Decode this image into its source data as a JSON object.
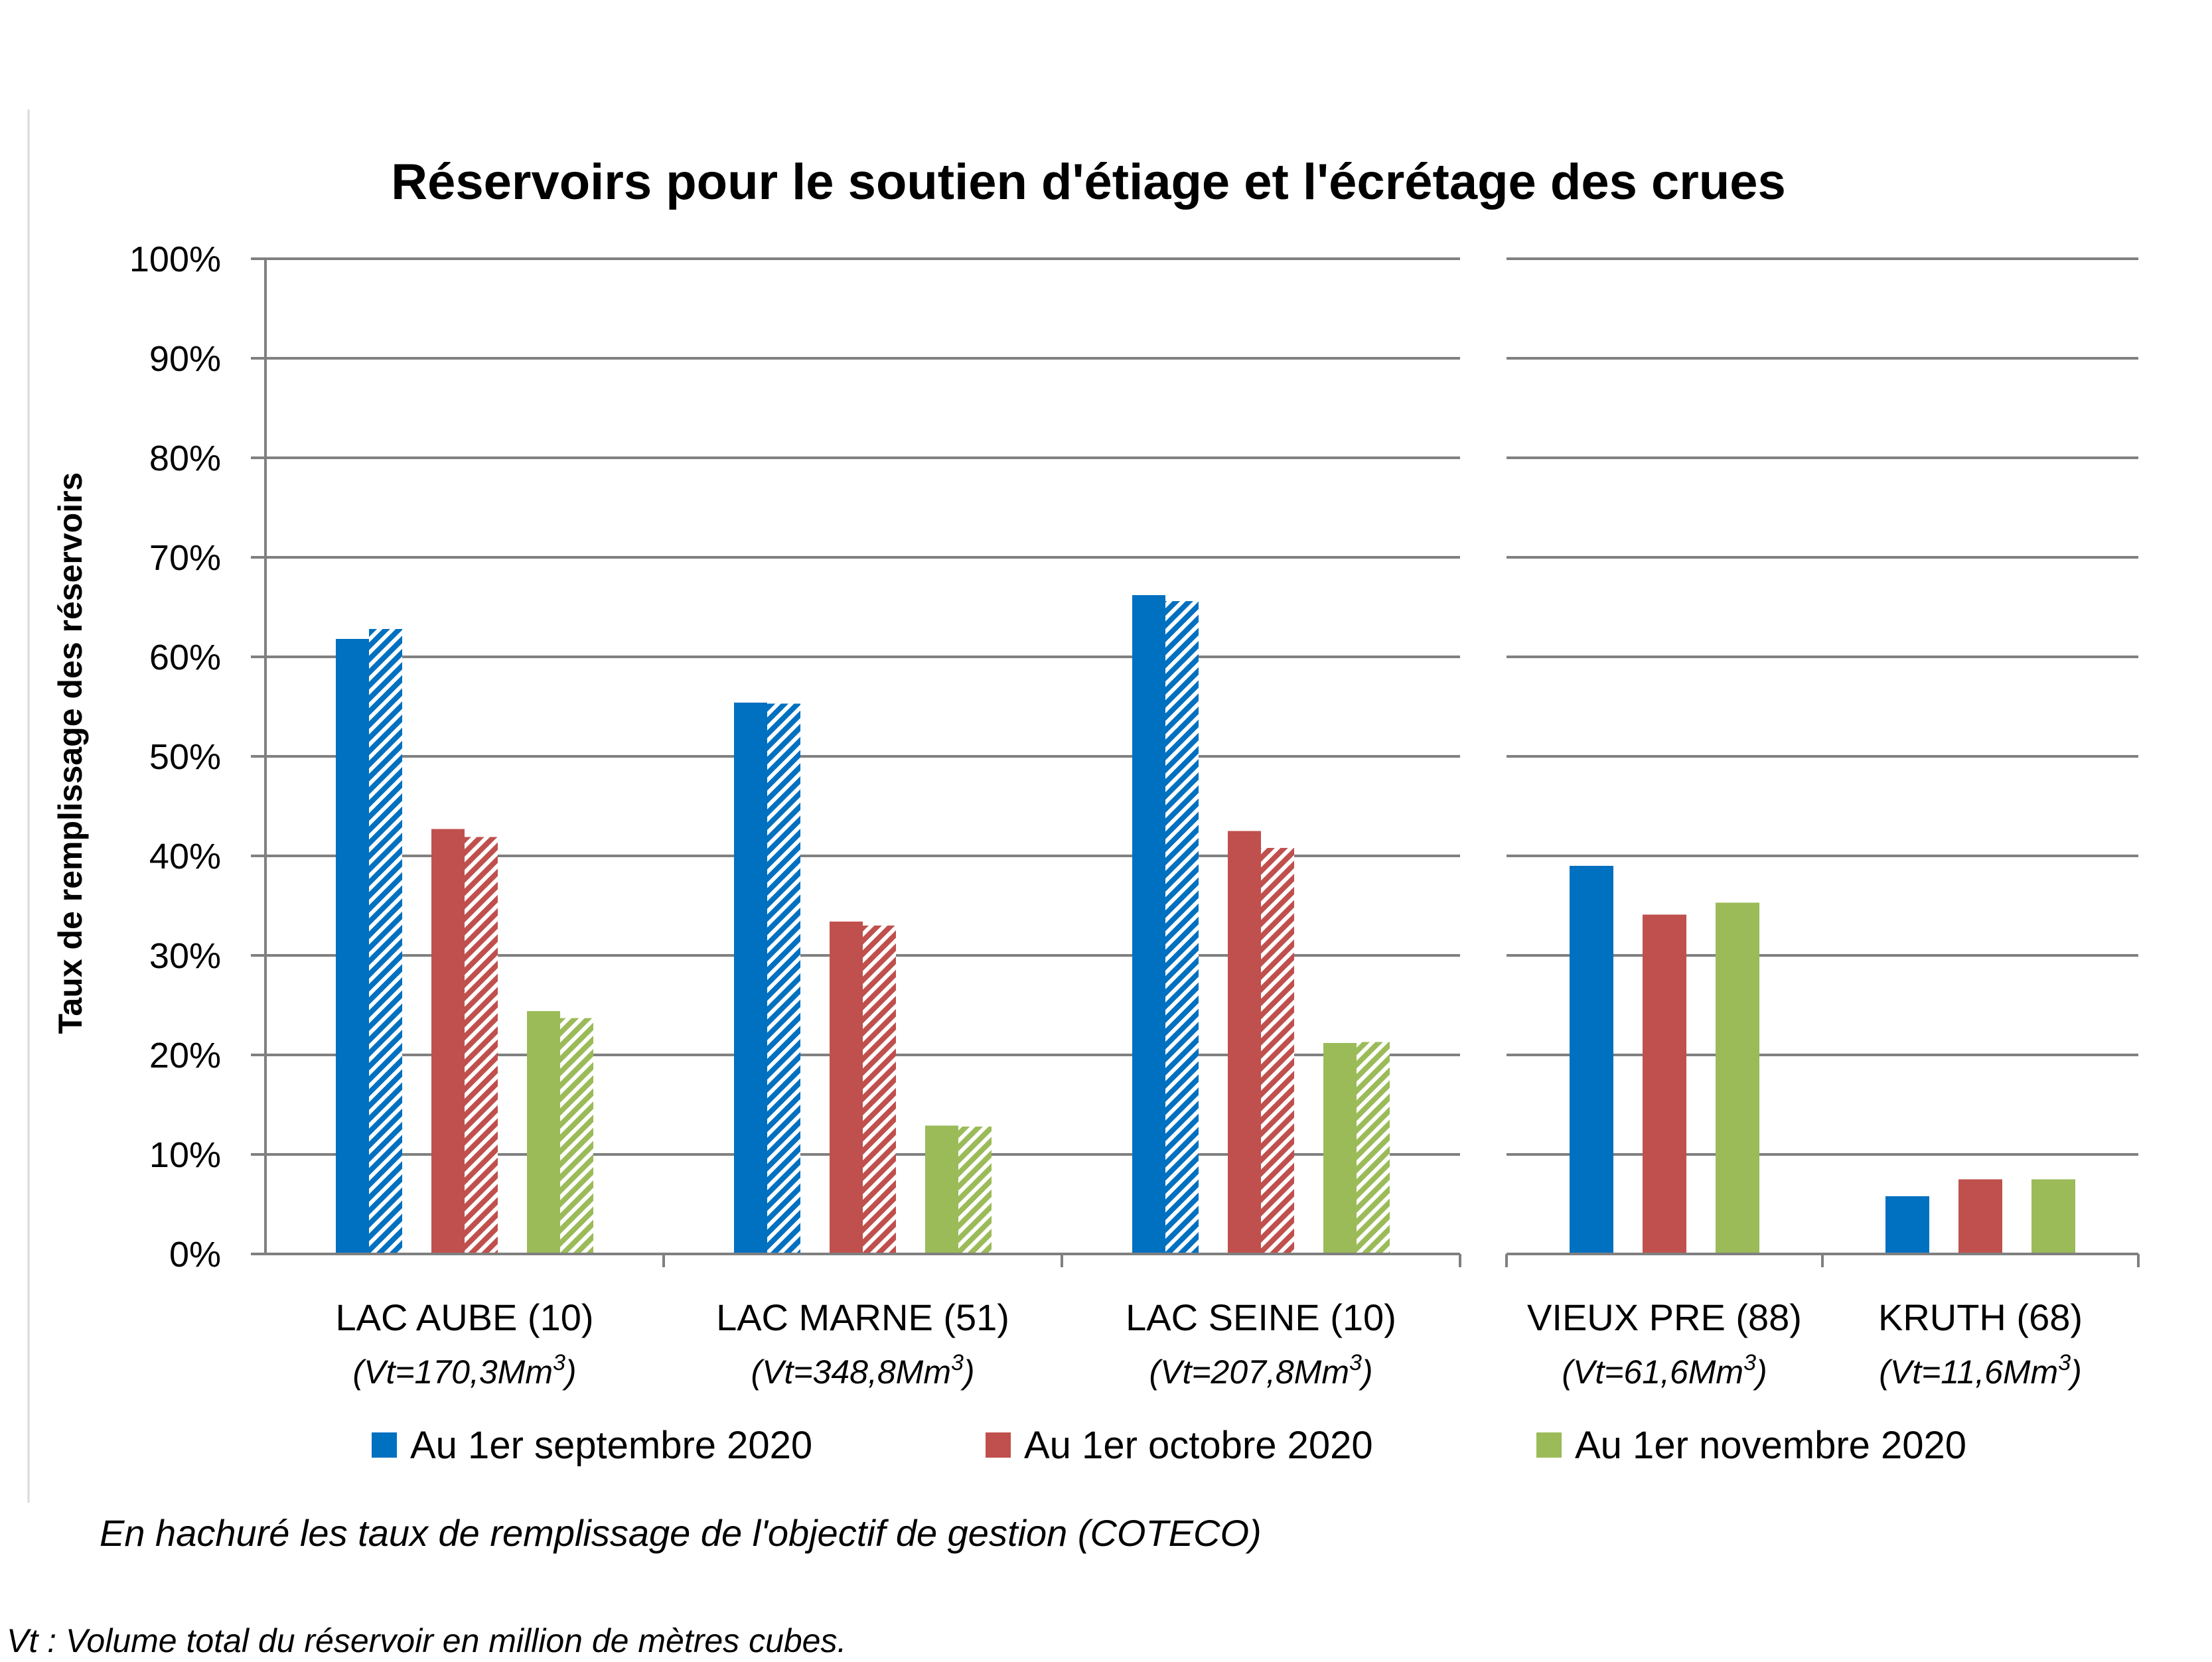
{
  "chart_data": {
    "type": "bar",
    "title": "Réservoirs pour le soutien d'étiage et l'écrétage des crues",
    "ylabel": "Taux de remplissage des réservoirs",
    "xlabel": "",
    "ylim": [
      0,
      100
    ],
    "yticks": [
      "0%",
      "10%",
      "20%",
      "30%",
      "40%",
      "50%",
      "60%",
      "70%",
      "80%",
      "90%",
      "100%"
    ],
    "grid": true,
    "legend_position": "bottom",
    "panels": [
      {
        "categories": [
          {
            "label": "LAC AUBE (10)",
            "vt": "(Vt=170,3Mm3)"
          },
          {
            "label": "LAC MARNE (51)",
            "vt": "(Vt=348,8Mm3)"
          },
          {
            "label": "LAC SEINE (10)",
            "vt": "(Vt=207,8Mm3)"
          }
        ],
        "series": [
          {
            "name": "Au 1er septembre 2020",
            "color": "#0070C0",
            "values": [
              61.8,
              55.4,
              66.2
            ],
            "objective": [
              62.8,
              55.3,
              65.6
            ]
          },
          {
            "name": "Au 1er octobre 2020",
            "color": "#C0504D",
            "values": [
              42.7,
              33.4,
              42.5
            ],
            "objective": [
              41.9,
              33.0,
              40.8
            ]
          },
          {
            "name": "Au 1er novembre 2020",
            "color": "#9BBB59",
            "values": [
              24.4,
              12.9,
              21.2
            ],
            "objective": [
              23.7,
              12.8,
              21.3
            ]
          }
        ]
      },
      {
        "categories": [
          {
            "label": "VIEUX PRE (88)",
            "vt": "(Vt=61,6Mm3)"
          },
          {
            "label": "KRUTH (68)",
            "vt": "(Vt=11,6Mm3)"
          }
        ],
        "series": [
          {
            "name": "Au 1er septembre 2020",
            "color": "#0070C0",
            "values": [
              39.0,
              5.8
            ]
          },
          {
            "name": "Au 1er octobre 2020",
            "color": "#C0504D",
            "values": [
              34.1,
              7.5
            ]
          },
          {
            "name": "Au 1er novembre 2020",
            "color": "#9BBB59",
            "values": [
              35.3,
              7.5
            ]
          }
        ]
      }
    ],
    "legend": [
      {
        "label": "Au 1er septembre 2020",
        "color": "#0070C0"
      },
      {
        "label": "Au 1er octobre 2020",
        "color": "#C0504D"
      },
      {
        "label": "Au 1er novembre 2020",
        "color": "#9BBB59"
      }
    ],
    "note": "En hachuré les taux de remplissage de l'objectif de gestion (COTECO)",
    "footnote": "Vt : Volume total du réservoir en million de mètres cubes.",
    "gridline_color": "#808080"
  }
}
